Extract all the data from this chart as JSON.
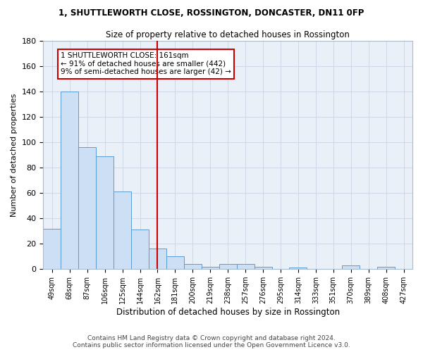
{
  "title1": "1, SHUTTLEWORTH CLOSE, ROSSINGTON, DONCASTER, DN11 0FP",
  "title2": "Size of property relative to detached houses in Rossington",
  "xlabel": "Distribution of detached houses by size in Rossington",
  "ylabel": "Number of detached properties",
  "categories": [
    "49sqm",
    "68sqm",
    "87sqm",
    "106sqm",
    "125sqm",
    "144sqm",
    "162sqm",
    "181sqm",
    "200sqm",
    "219sqm",
    "238sqm",
    "257sqm",
    "276sqm",
    "295sqm",
    "314sqm",
    "333sqm",
    "351sqm",
    "370sqm",
    "389sqm",
    "408sqm",
    "427sqm"
  ],
  "values": [
    32,
    140,
    96,
    89,
    61,
    31,
    16,
    10,
    4,
    2,
    4,
    4,
    2,
    0,
    1,
    0,
    0,
    3,
    0,
    2,
    0
  ],
  "bar_color": "#ccdff5",
  "bar_edge_color": "#5b9bd5",
  "vline_x_index": 6,
  "vline_color": "#cc0000",
  "annotation_text": "1 SHUTTLEWORTH CLOSE: 161sqm\n← 91% of detached houses are smaller (442)\n9% of semi-detached houses are larger (42) →",
  "annotation_box_color": "#cc0000",
  "ylim": [
    0,
    180
  ],
  "yticks": [
    0,
    20,
    40,
    60,
    80,
    100,
    120,
    140,
    160,
    180
  ],
  "grid_color": "#d0d8e8",
  "bg_color": "#eaf0f8",
  "footer1": "Contains HM Land Registry data © Crown copyright and database right 2024.",
  "footer2": "Contains public sector information licensed under the Open Government Licence v3.0."
}
